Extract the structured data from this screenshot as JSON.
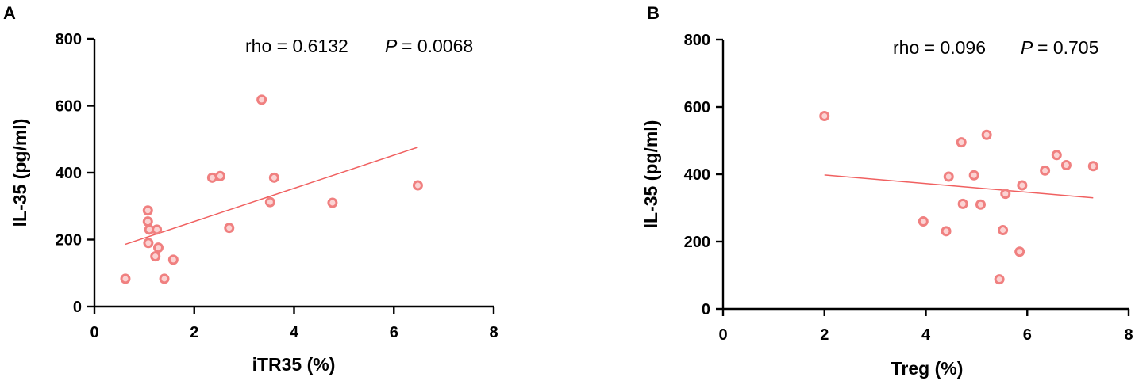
{
  "chart_data": [
    {
      "type": "scatter",
      "panel_label": "A",
      "xlabel": "iTR35 (%)",
      "ylabel": "IL-35 (pg/ml)",
      "xlim": [
        0,
        8
      ],
      "ylim": [
        0,
        800
      ],
      "xticks": [
        "0",
        "2",
        "4",
        "6",
        "8"
      ],
      "yticks": [
        "0",
        "200",
        "400",
        "600",
        "800"
      ],
      "stats": {
        "rho_label": "rho = 0.6132",
        "p_symbol": "P",
        "p_value": "= 0.0068"
      },
      "points": [
        {
          "x": 0.62,
          "y": 83
        },
        {
          "x": 1.07,
          "y": 287
        },
        {
          "x": 1.07,
          "y": 254
        },
        {
          "x": 1.1,
          "y": 230
        },
        {
          "x": 1.08,
          "y": 190
        },
        {
          "x": 1.22,
          "y": 150
        },
        {
          "x": 1.25,
          "y": 230
        },
        {
          "x": 1.28,
          "y": 176
        },
        {
          "x": 1.4,
          "y": 83
        },
        {
          "x": 1.58,
          "y": 140
        },
        {
          "x": 2.36,
          "y": 385
        },
        {
          "x": 2.52,
          "y": 390
        },
        {
          "x": 2.7,
          "y": 235
        },
        {
          "x": 3.35,
          "y": 618
        },
        {
          "x": 3.52,
          "y": 312
        },
        {
          "x": 3.6,
          "y": 385
        },
        {
          "x": 4.77,
          "y": 310
        },
        {
          "x": 6.48,
          "y": 362
        }
      ],
      "fit_line": {
        "x": [
          0.62,
          6.48
        ],
        "y": [
          186,
          476
        ]
      },
      "color": "#F08080",
      "fit_color": "#F06060"
    },
    {
      "type": "scatter",
      "panel_label": "B",
      "xlabel": "Treg (%)",
      "ylabel": "IL-35 (pg/ml)",
      "xlim": [
        0,
        8
      ],
      "ylim": [
        0,
        800
      ],
      "xticks": [
        "0",
        "2",
        "4",
        "6",
        "8"
      ],
      "yticks": [
        "0",
        "200",
        "400",
        "600",
        "800"
      ],
      "stats": {
        "rho_label": "rho = 0.096",
        "p_symbol": "P",
        "p_value": "= 0.705"
      },
      "points": [
        {
          "x": 2.0,
          "y": 573
        },
        {
          "x": 3.95,
          "y": 260
        },
        {
          "x": 4.4,
          "y": 231
        },
        {
          "x": 4.45,
          "y": 393
        },
        {
          "x": 4.7,
          "y": 495
        },
        {
          "x": 4.73,
          "y": 312
        },
        {
          "x": 4.95,
          "y": 397
        },
        {
          "x": 5.08,
          "y": 310
        },
        {
          "x": 5.2,
          "y": 517
        },
        {
          "x": 5.45,
          "y": 88
        },
        {
          "x": 5.52,
          "y": 234
        },
        {
          "x": 5.57,
          "y": 342
        },
        {
          "x": 5.85,
          "y": 170
        },
        {
          "x": 5.9,
          "y": 367
        },
        {
          "x": 6.35,
          "y": 411
        },
        {
          "x": 6.58,
          "y": 457
        },
        {
          "x": 6.77,
          "y": 427
        },
        {
          "x": 7.3,
          "y": 424
        }
      ],
      "fit_line": {
        "x": [
          2.0,
          7.3
        ],
        "y": [
          398,
          330
        ]
      },
      "color": "#F08080",
      "fit_color": "#F06060"
    }
  ]
}
